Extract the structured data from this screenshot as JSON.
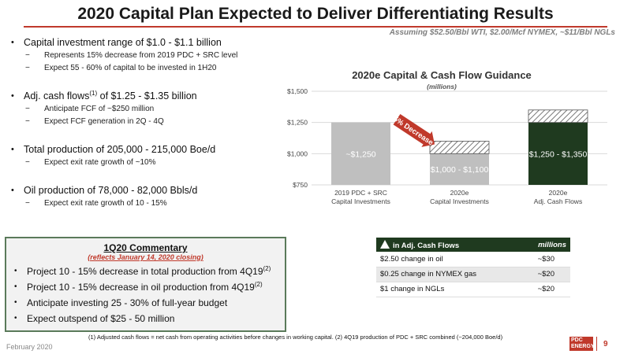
{
  "header": {
    "title": "2020 Capital Plan Expected to Deliver Differentiating Results",
    "subtitle": "Assuming $52.50/Bbl WTI, $2.00/Mcf NYMEX, ~$11/Bbl NGLs"
  },
  "bullets": [
    {
      "text": "Capital investment range of $1.0 - $1.1 billion",
      "sup": "",
      "subs": [
        "Represents 15% decrease from 2019 PDC + SRC level",
        "Expect 55 - 60% of capital to be invested in 1H20"
      ]
    },
    {
      "text": "Adj. cash flows",
      "sup": "(1)",
      "text_after": " of $1.25 - $1.35 billion",
      "subs": [
        "Anticipate FCF of ~$250 million",
        "Expect FCF generation in 2Q - 4Q"
      ]
    },
    {
      "text": "Total production of 205,000 - 215,000 Boe/d",
      "sup": "",
      "subs": [
        "Expect exit rate growth of ~10%"
      ]
    },
    {
      "text": "Oil production of 78,000 - 82,000 Bbls/d",
      "sup": "",
      "subs": [
        "Expect exit rate growth of 10 - 15%"
      ]
    }
  ],
  "chart_data": {
    "type": "bar",
    "title": "2020e Capital & Cash Flow Guidance",
    "subtitle": "(millions)",
    "ylim": [
      750,
      1500
    ],
    "yticks": [
      "$750",
      "$1,000",
      "$1,250",
      "$1,500"
    ],
    "ytick_values": [
      750,
      1000,
      1250,
      1500
    ],
    "categories": [
      {
        "line1": "2019 PDC + SRC",
        "line2": "Capital Investments"
      },
      {
        "line1": "2020e",
        "line2": "Capital Investments"
      },
      {
        "line1": "2020e",
        "line2": "Adj. Cash Flows"
      }
    ],
    "bars": [
      {
        "low": 1250,
        "high": 1250,
        "label": "~$1,250",
        "color": "#bfbfbf"
      },
      {
        "low": 1000,
        "high": 1100,
        "label": "$1,000 - $1,100",
        "color": "#bfbfbf"
      },
      {
        "low": 1250,
        "high": 1350,
        "label": "$1,250 - $1,350",
        "color": "#1f3a1f"
      }
    ],
    "annotation": "15% Decrease",
    "colors": {
      "arrow": "#c0392b",
      "grid": "#d9d9d9"
    }
  },
  "commentary": {
    "title": "1Q20 Commentary",
    "subtitle": "(reflects January 14, 2020 closing)",
    "items": [
      {
        "text": "Project 10 - 15% decrease in total production from 4Q19",
        "sup": "(2)"
      },
      {
        "text": "Project 10 - 15% decrease in oil production from 4Q19",
        "sup": "(2)"
      },
      {
        "text": "Anticipate investing 25 - 30% of full-year budget",
        "sup": ""
      },
      {
        "text": "Expect outspend of $25 - 50 million",
        "sup": ""
      }
    ]
  },
  "sensitivity": {
    "header_left": "in Adj. Cash Flows",
    "header_right": "millions",
    "rows": [
      {
        "label": "$2.50 change in oil",
        "value": "~$30"
      },
      {
        "label": "$0.25 change in NYMEX gas",
        "value": "~$20"
      },
      {
        "label": "$1 change in NGLs",
        "value": "~$20"
      }
    ]
  },
  "footer": {
    "footnote": "(1)  Adjusted cash flows = net cash from operating activities before changes in working capital. (2) 4Q19 production of PDC + SRC combined (~204,000 Boe/d)",
    "date": "February 2020",
    "logo_line1": "PDC",
    "logo_line2": "ENERGY",
    "page": "9"
  }
}
